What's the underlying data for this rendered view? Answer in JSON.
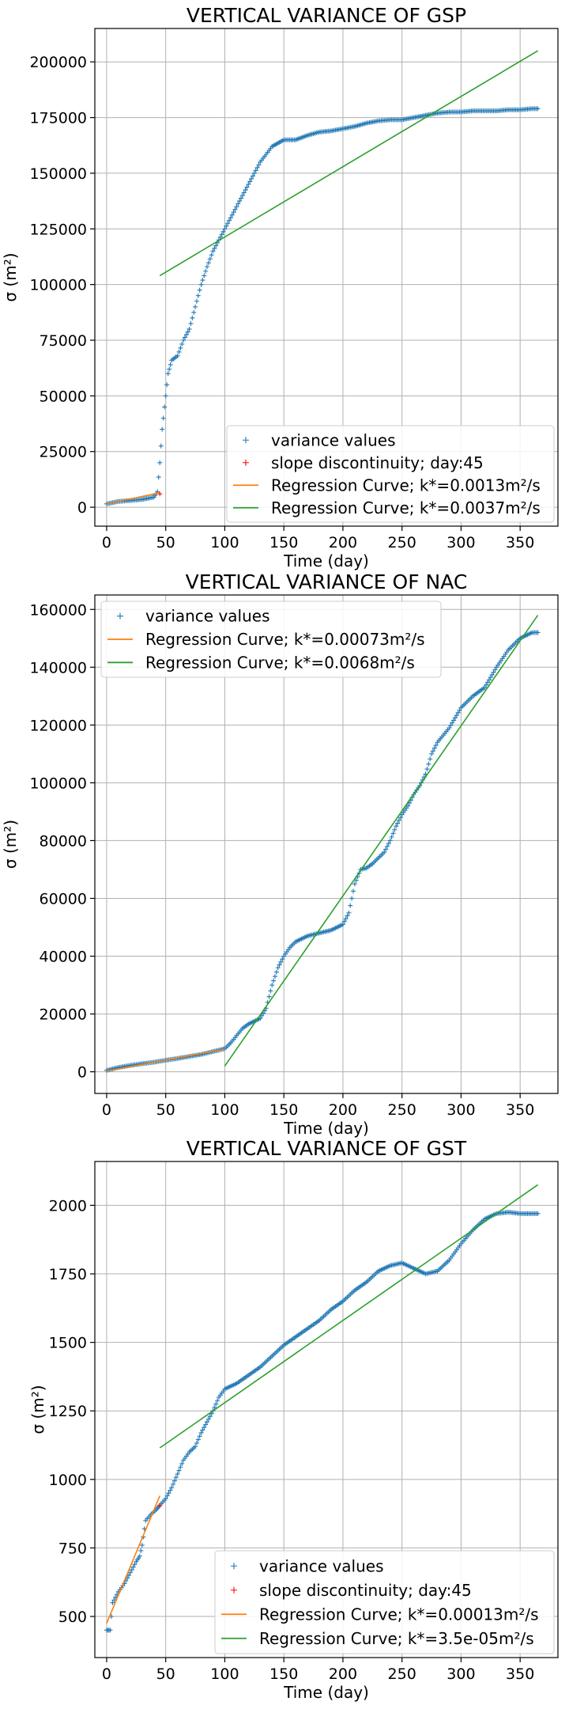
{
  "chart_data": [
    {
      "type": "scatter",
      "title": "VERTICAL VARIANCE OF GSP",
      "xlabel": "Time (day)",
      "ylabel": "σ (m²)",
      "xlim": [
        -10,
        382
      ],
      "ylim": [
        -8500,
        215000
      ],
      "xticks": [
        0,
        50,
        100,
        150,
        200,
        250,
        300,
        350
      ],
      "yticks": [
        0,
        25000,
        50000,
        75000,
        100000,
        125000,
        150000,
        175000,
        200000
      ],
      "grid": true,
      "legend_position": "lower-right",
      "series": [
        {
          "name": "variance values",
          "kind": "scatter",
          "color": "#1f77b4",
          "points": [
            [
              0,
              1500
            ],
            [
              10,
              2600
            ],
            [
              20,
              3000
            ],
            [
              30,
              3500
            ],
            [
              40,
              4500
            ],
            [
              43,
              7000
            ],
            [
              45,
              20000
            ],
            [
              47,
              35000
            ],
            [
              50,
              50000
            ],
            [
              52,
              60000
            ],
            [
              55,
              66000
            ],
            [
              60,
              68000
            ],
            [
              65,
              75000
            ],
            [
              70,
              80000
            ],
            [
              75,
              90000
            ],
            [
              80,
              100000
            ],
            [
              85,
              108000
            ],
            [
              90,
              115000
            ],
            [
              95,
              120000
            ],
            [
              100,
              125000
            ],
            [
              110,
              135000
            ],
            [
              120,
              145000
            ],
            [
              130,
              155000
            ],
            [
              140,
              162000
            ],
            [
              150,
              165000
            ],
            [
              160,
              165000
            ],
            [
              170,
              167000
            ],
            [
              180,
              168500
            ],
            [
              190,
              169000
            ],
            [
              200,
              170000
            ],
            [
              210,
              171000
            ],
            [
              220,
              172500
            ],
            [
              230,
              173500
            ],
            [
              240,
              174000
            ],
            [
              250,
              174000
            ],
            [
              260,
              175000
            ],
            [
              270,
              176000
            ],
            [
              280,
              177000
            ],
            [
              290,
              177500
            ],
            [
              300,
              177500
            ],
            [
              310,
              178000
            ],
            [
              320,
              178000
            ],
            [
              330,
              178000
            ],
            [
              340,
              178500
            ],
            [
              350,
              178500
            ],
            [
              360,
              179000
            ],
            [
              365,
              179000
            ]
          ]
        },
        {
          "name": "slope discontinuity; day:45",
          "kind": "scatter",
          "color": "#ff0000",
          "points": [
            [
              45,
              6000
            ]
          ]
        },
        {
          "name": "Regression Curve; k*=0.0013m²/s",
          "kind": "line",
          "color": "#ff7f0e",
          "points": [
            [
              0,
              1500
            ],
            [
              45,
              6500
            ]
          ]
        },
        {
          "name": "Regression Curve; k*=0.0037m²/s",
          "kind": "line",
          "color": "#2ca02c",
          "points": [
            [
              45,
              104000
            ],
            [
              365,
              205000
            ]
          ]
        }
      ]
    },
    {
      "type": "scatter",
      "title": "VERTICAL VARIANCE OF NAC",
      "xlabel": "Time (day)",
      "ylabel": "σ (m²)",
      "xlim": [
        -10,
        382
      ],
      "ylim": [
        -7500,
        165000
      ],
      "xticks": [
        0,
        50,
        100,
        150,
        200,
        250,
        300,
        350
      ],
      "yticks": [
        0,
        20000,
        40000,
        60000,
        80000,
        100000,
        120000,
        140000,
        160000
      ],
      "grid": true,
      "legend_position": "upper-left",
      "series": [
        {
          "name": "variance values",
          "kind": "scatter",
          "color": "#1f77b4",
          "points": [
            [
              0,
              500
            ],
            [
              10,
              1500
            ],
            [
              20,
              2200
            ],
            [
              30,
              2800
            ],
            [
              40,
              3300
            ],
            [
              50,
              4000
            ],
            [
              60,
              4600
            ],
            [
              70,
              5300
            ],
            [
              80,
              6000
            ],
            [
              90,
              7000
            ],
            [
              100,
              8000
            ],
            [
              105,
              10000
            ],
            [
              110,
              12500
            ],
            [
              115,
              15000
            ],
            [
              120,
              16500
            ],
            [
              125,
              17500
            ],
            [
              130,
              18500
            ],
            [
              135,
              22000
            ],
            [
              140,
              30000
            ],
            [
              145,
              36000
            ],
            [
              150,
              40000
            ],
            [
              155,
              43000
            ],
            [
              160,
              45000
            ],
            [
              170,
              47000
            ],
            [
              180,
              48000
            ],
            [
              190,
              49000
            ],
            [
              200,
              51000
            ],
            [
              205,
              55000
            ],
            [
              210,
              65000
            ],
            [
              215,
              70000
            ],
            [
              220,
              70500
            ],
            [
              225,
              72000
            ],
            [
              230,
              74000
            ],
            [
              235,
              76000
            ],
            [
              240,
              80000
            ],
            [
              245,
              85000
            ],
            [
              250,
              89000
            ],
            [
              255,
              92000
            ],
            [
              260,
              96000
            ],
            [
              265,
              99000
            ],
            [
              270,
              103000
            ],
            [
              275,
              110000
            ],
            [
              280,
              114000
            ],
            [
              290,
              119000
            ],
            [
              300,
              126000
            ],
            [
              310,
              130000
            ],
            [
              320,
              133000
            ],
            [
              330,
              140000
            ],
            [
              340,
              146000
            ],
            [
              350,
              150000
            ],
            [
              360,
              152000
            ],
            [
              365,
              152000
            ]
          ]
        },
        {
          "name": "Regression Curve; k*=0.00073m²/s",
          "kind": "line",
          "color": "#ff7f0e",
          "points": [
            [
              0,
              300
            ],
            [
              100,
              7800
            ]
          ]
        },
        {
          "name": "Regression Curve; k*=0.0068m²/s",
          "kind": "line",
          "color": "#2ca02c",
          "points": [
            [
              100,
              2000
            ],
            [
              365,
              158000
            ]
          ]
        }
      ]
    },
    {
      "type": "scatter",
      "title": "VERTICAL VARIANCE OF GST",
      "xlabel": "Time (day)",
      "ylabel": "σ (m²)",
      "xlim": [
        -10,
        382
      ],
      "ylim": [
        350,
        2160
      ],
      "xticks": [
        0,
        50,
        100,
        150,
        200,
        250,
        300,
        350
      ],
      "yticks": [
        500,
        750,
        1000,
        1250,
        1500,
        1750,
        2000
      ],
      "grid": true,
      "legend_position": "lower-right",
      "series": [
        {
          "name": "variance values",
          "kind": "scatter",
          "color": "#1f77b4",
          "points": [
            [
              0,
              450
            ],
            [
              3,
              450
            ],
            [
              5,
              550
            ],
            [
              10,
              590
            ],
            [
              15,
              620
            ],
            [
              20,
              660
            ],
            [
              25,
              700
            ],
            [
              28,
              720
            ],
            [
              30,
              760
            ],
            [
              33,
              850
            ],
            [
              37,
              870
            ],
            [
              42,
              890
            ],
            [
              45,
              905
            ],
            [
              50,
              930
            ],
            [
              55,
              970
            ],
            [
              60,
              1020
            ],
            [
              65,
              1070
            ],
            [
              70,
              1100
            ],
            [
              75,
              1120
            ],
            [
              80,
              1170
            ],
            [
              85,
              1210
            ],
            [
              90,
              1250
            ],
            [
              95,
              1300
            ],
            [
              100,
              1330
            ],
            [
              105,
              1340
            ],
            [
              110,
              1350
            ],
            [
              120,
              1380
            ],
            [
              130,
              1410
            ],
            [
              140,
              1450
            ],
            [
              150,
              1490
            ],
            [
              160,
              1520
            ],
            [
              170,
              1550
            ],
            [
              180,
              1580
            ],
            [
              190,
              1620
            ],
            [
              200,
              1650
            ],
            [
              210,
              1690
            ],
            [
              220,
              1720
            ],
            [
              230,
              1760
            ],
            [
              240,
              1780
            ],
            [
              250,
              1790
            ],
            [
              260,
              1770
            ],
            [
              270,
              1750
            ],
            [
              280,
              1760
            ],
            [
              290,
              1800
            ],
            [
              300,
              1860
            ],
            [
              310,
              1910
            ],
            [
              320,
              1950
            ],
            [
              330,
              1970
            ],
            [
              340,
              1975
            ],
            [
              350,
              1970
            ],
            [
              360,
              1970
            ],
            [
              365,
              1970
            ]
          ]
        },
        {
          "name": "slope discontinuity; day:45",
          "kind": "scatter",
          "color": "#ff0000",
          "points": [
            [
              45,
              905
            ]
          ]
        },
        {
          "name": "Regression Curve; k*=0.00013m²/s",
          "kind": "line",
          "color": "#ff7f0e",
          "points": [
            [
              0,
              475
            ],
            [
              45,
              940
            ]
          ]
        },
        {
          "name": "Regression Curve; k*=3.5e-05m²/s",
          "kind": "line",
          "color": "#2ca02c",
          "points": [
            [
              45,
              1115
            ],
            [
              365,
              2075
            ]
          ]
        }
      ]
    }
  ]
}
